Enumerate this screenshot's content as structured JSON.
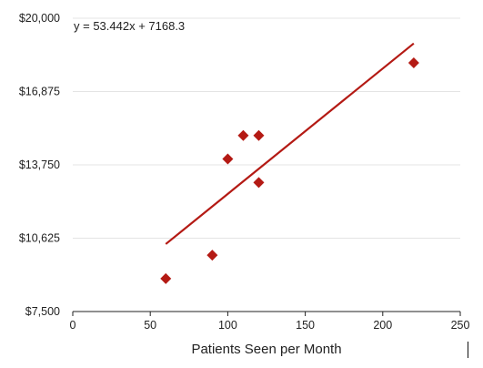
{
  "chart_data": {
    "type": "scatter",
    "title": "",
    "xlabel": "Patients Seen per Month",
    "ylabel": "",
    "xlim": [
      0,
      250
    ],
    "ylim": [
      7500,
      20000
    ],
    "x_ticks": [
      0,
      50,
      100,
      150,
      200,
      250
    ],
    "x_tick_labels": [
      "0",
      "50",
      "100",
      "150",
      "200",
      "250"
    ],
    "y_ticks": [
      7500,
      10625,
      13750,
      16875,
      20000
    ],
    "y_tick_labels": [
      "$7,500",
      "$10,625",
      "$13,750",
      "$16,875",
      "$20,000"
    ],
    "grid": "horizontal",
    "series": [
      {
        "marker": "diamond",
        "color": "#b41a14",
        "points": [
          {
            "x": 60,
            "y": 8900
          },
          {
            "x": 90,
            "y": 9900
          },
          {
            "x": 100,
            "y": 14000
          },
          {
            "x": 110,
            "y": 15000
          },
          {
            "x": 120,
            "y": 15000
          },
          {
            "x": 120,
            "y": 13000
          },
          {
            "x": 220,
            "y": 18100
          }
        ]
      }
    ],
    "trendline": {
      "type": "linear",
      "slope": 53.442,
      "intercept": 7168.3,
      "x_range": [
        60,
        220
      ],
      "color": "#b41a14",
      "equation_label": "y = 53.442x + 7168.3"
    }
  }
}
